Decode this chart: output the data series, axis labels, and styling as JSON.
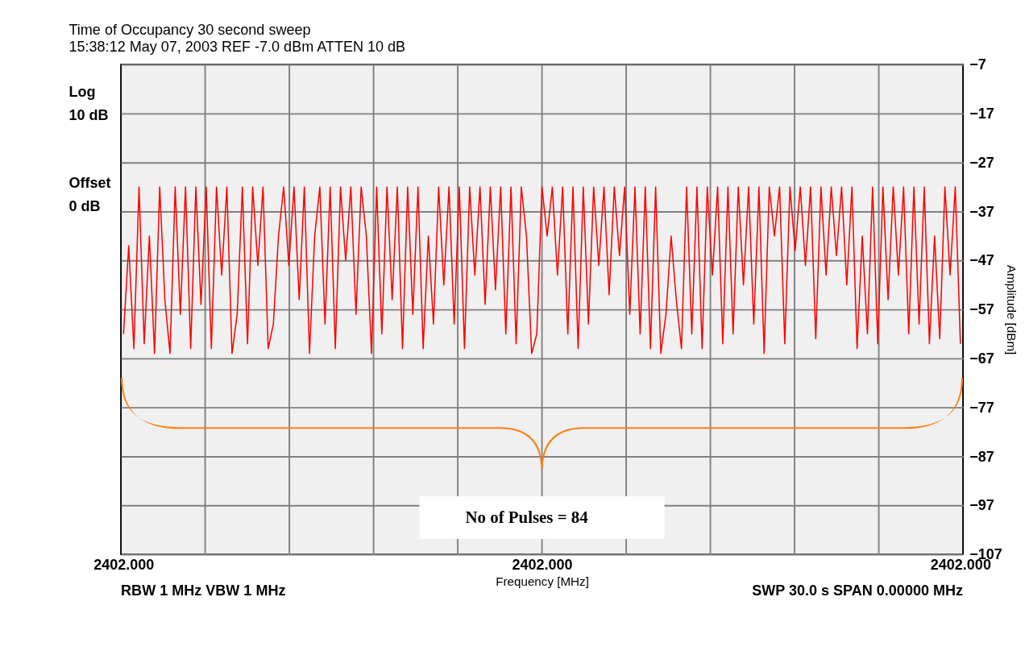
{
  "chart_data": {
    "type": "line",
    "title": "Time of Occupancy 30 second sweep",
    "subtitle": "15:38:12 May 07, 2003   REF -7.0 dBm              ATTEN 10 dB",
    "xlabel": "Frequency [MHz]",
    "ylabel": "Amplitude [dBm]",
    "annotations": [
      "Log",
      "10 dB",
      "Offset",
      "0 dB",
      "RBW 1 MHz  VBW 1 MHz",
      "SWP 30.0 s  SPAN 0.00000 MHz",
      "No of Pulses = 84"
    ],
    "categories": [
      "2402.000",
      null,
      null,
      null,
      null,
      null,
      null,
      null,
      null,
      null,
      null,
      null,
      null,
      null,
      null,
      null,
      null,
      null,
      null,
      null,
      null,
      null,
      null,
      null,
      null,
      null,
      null,
      null,
      null,
      null,
      null,
      null,
      null,
      null,
      null,
      null,
      null,
      null,
      null,
      null,
      null,
      null,
      null,
      null,
      null,
      null,
      null,
      null,
      null,
      null,
      null,
      null,
      null,
      null,
      null,
      null,
      null,
      null,
      null,
      null,
      null,
      null,
      null,
      null,
      null,
      null,
      null,
      null,
      null,
      null,
      null,
      null,
      null,
      null,
      null,
      null,
      null,
      null,
      null,
      null,
      null,
      "2402.000",
      null,
      null,
      null,
      null,
      null,
      null,
      null,
      null,
      null,
      null,
      null,
      null,
      null,
      null,
      null,
      null,
      null,
      null,
      null,
      null,
      null,
      null,
      null,
      null,
      null,
      null,
      null,
      null,
      null,
      null,
      null,
      null,
      null,
      null,
      null,
      null,
      null,
      null,
      null,
      null,
      null,
      null,
      null,
      null,
      null,
      null,
      null,
      null,
      null,
      null,
      null,
      null,
      null,
      null,
      null,
      null,
      null,
      null,
      null,
      null,
      null,
      null,
      null,
      null,
      null,
      null,
      null,
      null,
      null,
      null,
      null,
      null,
      null,
      null,
      null,
      null,
      null,
      null,
      null,
      null,
      "2402.000"
    ],
    "ylim": [
      -107,
      -7
    ],
    "yticks": [
      -107,
      -97,
      -87,
      -77,
      -67,
      -57,
      -47,
      -37,
      -27,
      -17,
      -7
    ],
    "grid": true,
    "marker": "none",
    "line_style": "solid",
    "series": [
      {
        "color": "#ff0000",
        "values": [
          -62,
          -44,
          -65,
          -32,
          -64,
          -42,
          -66,
          -32,
          -55,
          -66,
          -32,
          -58,
          -32,
          -65,
          -32,
          -56,
          -32,
          -65,
          -32,
          -50,
          -32,
          -66,
          -58,
          -32,
          -64,
          -32,
          -48,
          -32,
          -65,
          -60,
          -42,
          -32,
          -48,
          -32,
          -55,
          -32,
          -66,
          -42,
          -32,
          -60,
          -32,
          -65,
          -32,
          -47,
          -32,
          -58,
          -32,
          -42,
          -66,
          -32,
          -62,
          -32,
          -55,
          -32,
          -65,
          -32,
          -58,
          -32,
          -65,
          -42,
          -60,
          -32,
          -52,
          -32,
          -60,
          -32,
          -65,
          -32,
          -50,
          -32,
          -56,
          -32,
          -53,
          -32,
          -62,
          -32,
          -64,
          -32,
          -42,
          -66,
          -62,
          -32,
          -42,
          -32,
          -50,
          -32,
          -62,
          -32,
          -65,
          -32,
          -60,
          -32,
          -48,
          -32,
          -54,
          -32,
          -46,
          -32,
          -58,
          -32,
          -62,
          -32,
          -65,
          -32,
          -66,
          -58,
          -42,
          -55,
          -65,
          -32,
          -62,
          -32,
          -65,
          -32,
          -50,
          -32,
          -64,
          -32,
          -62,
          -32,
          -52,
          -32,
          -60,
          -32,
          -66,
          -32,
          -42,
          -32,
          -64,
          -32,
          -45,
          -32,
          -48,
          -32,
          -63,
          -32,
          -50,
          -32,
          -46,
          -32,
          -52,
          -32,
          -65,
          -42,
          -62,
          -32,
          -64,
          -32,
          -55,
          -32,
          -50,
          -32,
          -62,
          -32,
          -60,
          -32,
          -64,
          -42,
          -63,
          -32,
          -50,
          -32,
          -64
        ]
      }
    ]
  }
}
